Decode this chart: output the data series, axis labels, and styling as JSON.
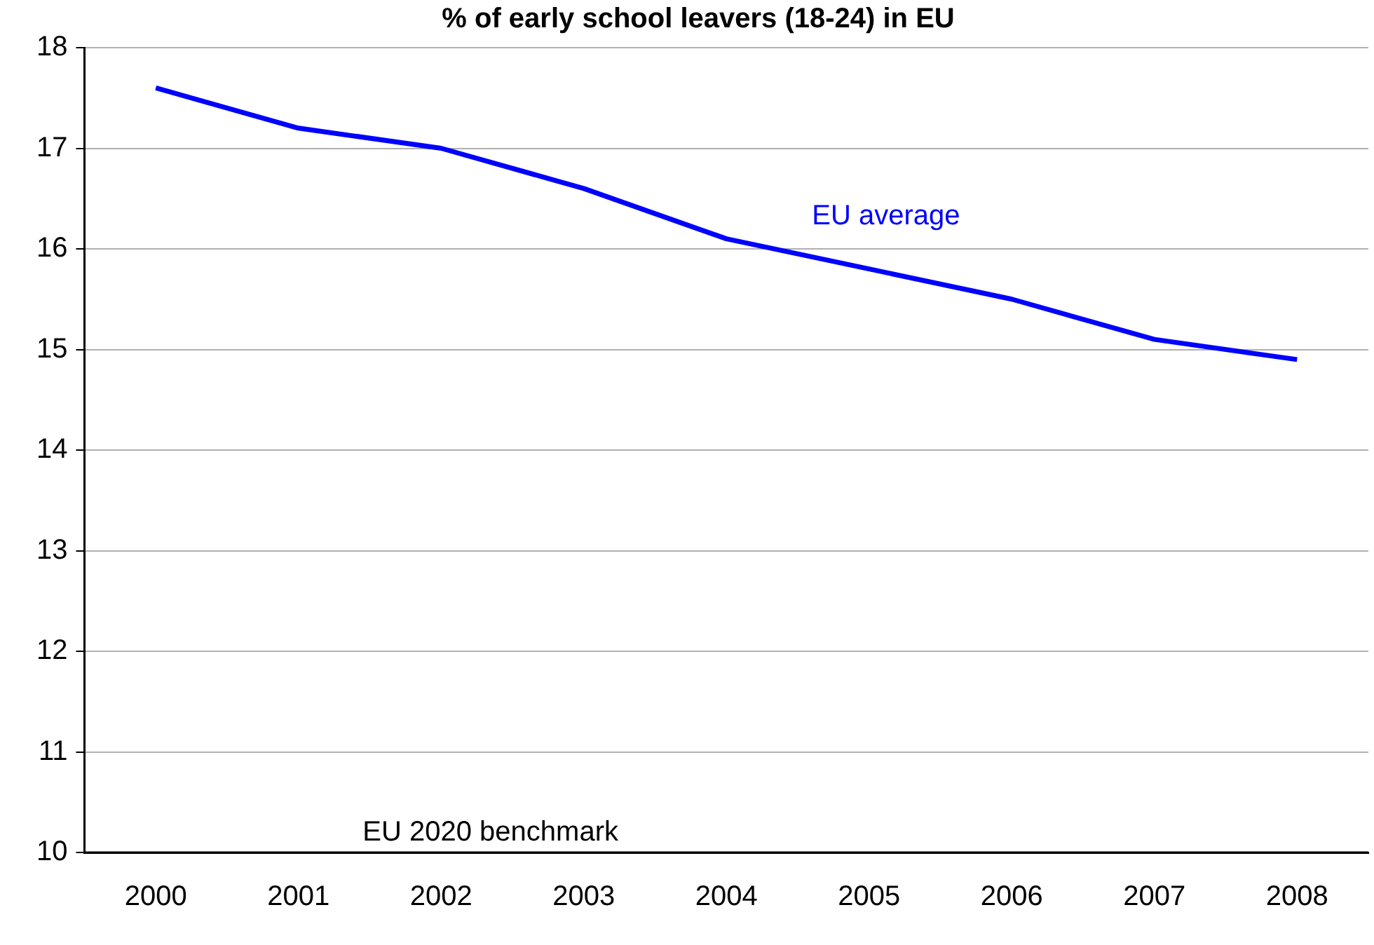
{
  "chart_data": {
    "type": "line",
    "title": "% of early school leavers (18-24) in EU",
    "categories": [
      "2000",
      "2001",
      "2002",
      "2003",
      "2004",
      "2005",
      "2006",
      "2007",
      "2008"
    ],
    "series": [
      {
        "name": "EU average",
        "color": "#0000ff",
        "values": [
          17.6,
          17.2,
          17.0,
          16.6,
          16.1,
          15.8,
          15.5,
          15.1,
          14.9
        ]
      }
    ],
    "ylim": [
      10,
      18
    ],
    "yticks": [
      10,
      11,
      12,
      13,
      14,
      15,
      16,
      17,
      18
    ],
    "grid": "y",
    "legend": false,
    "marker": "none",
    "line_style": "solid",
    "ref_lines": [
      {
        "axis": "y",
        "value": 10,
        "label": "EU 2020 benchmark",
        "color": "#000000"
      }
    ]
  }
}
